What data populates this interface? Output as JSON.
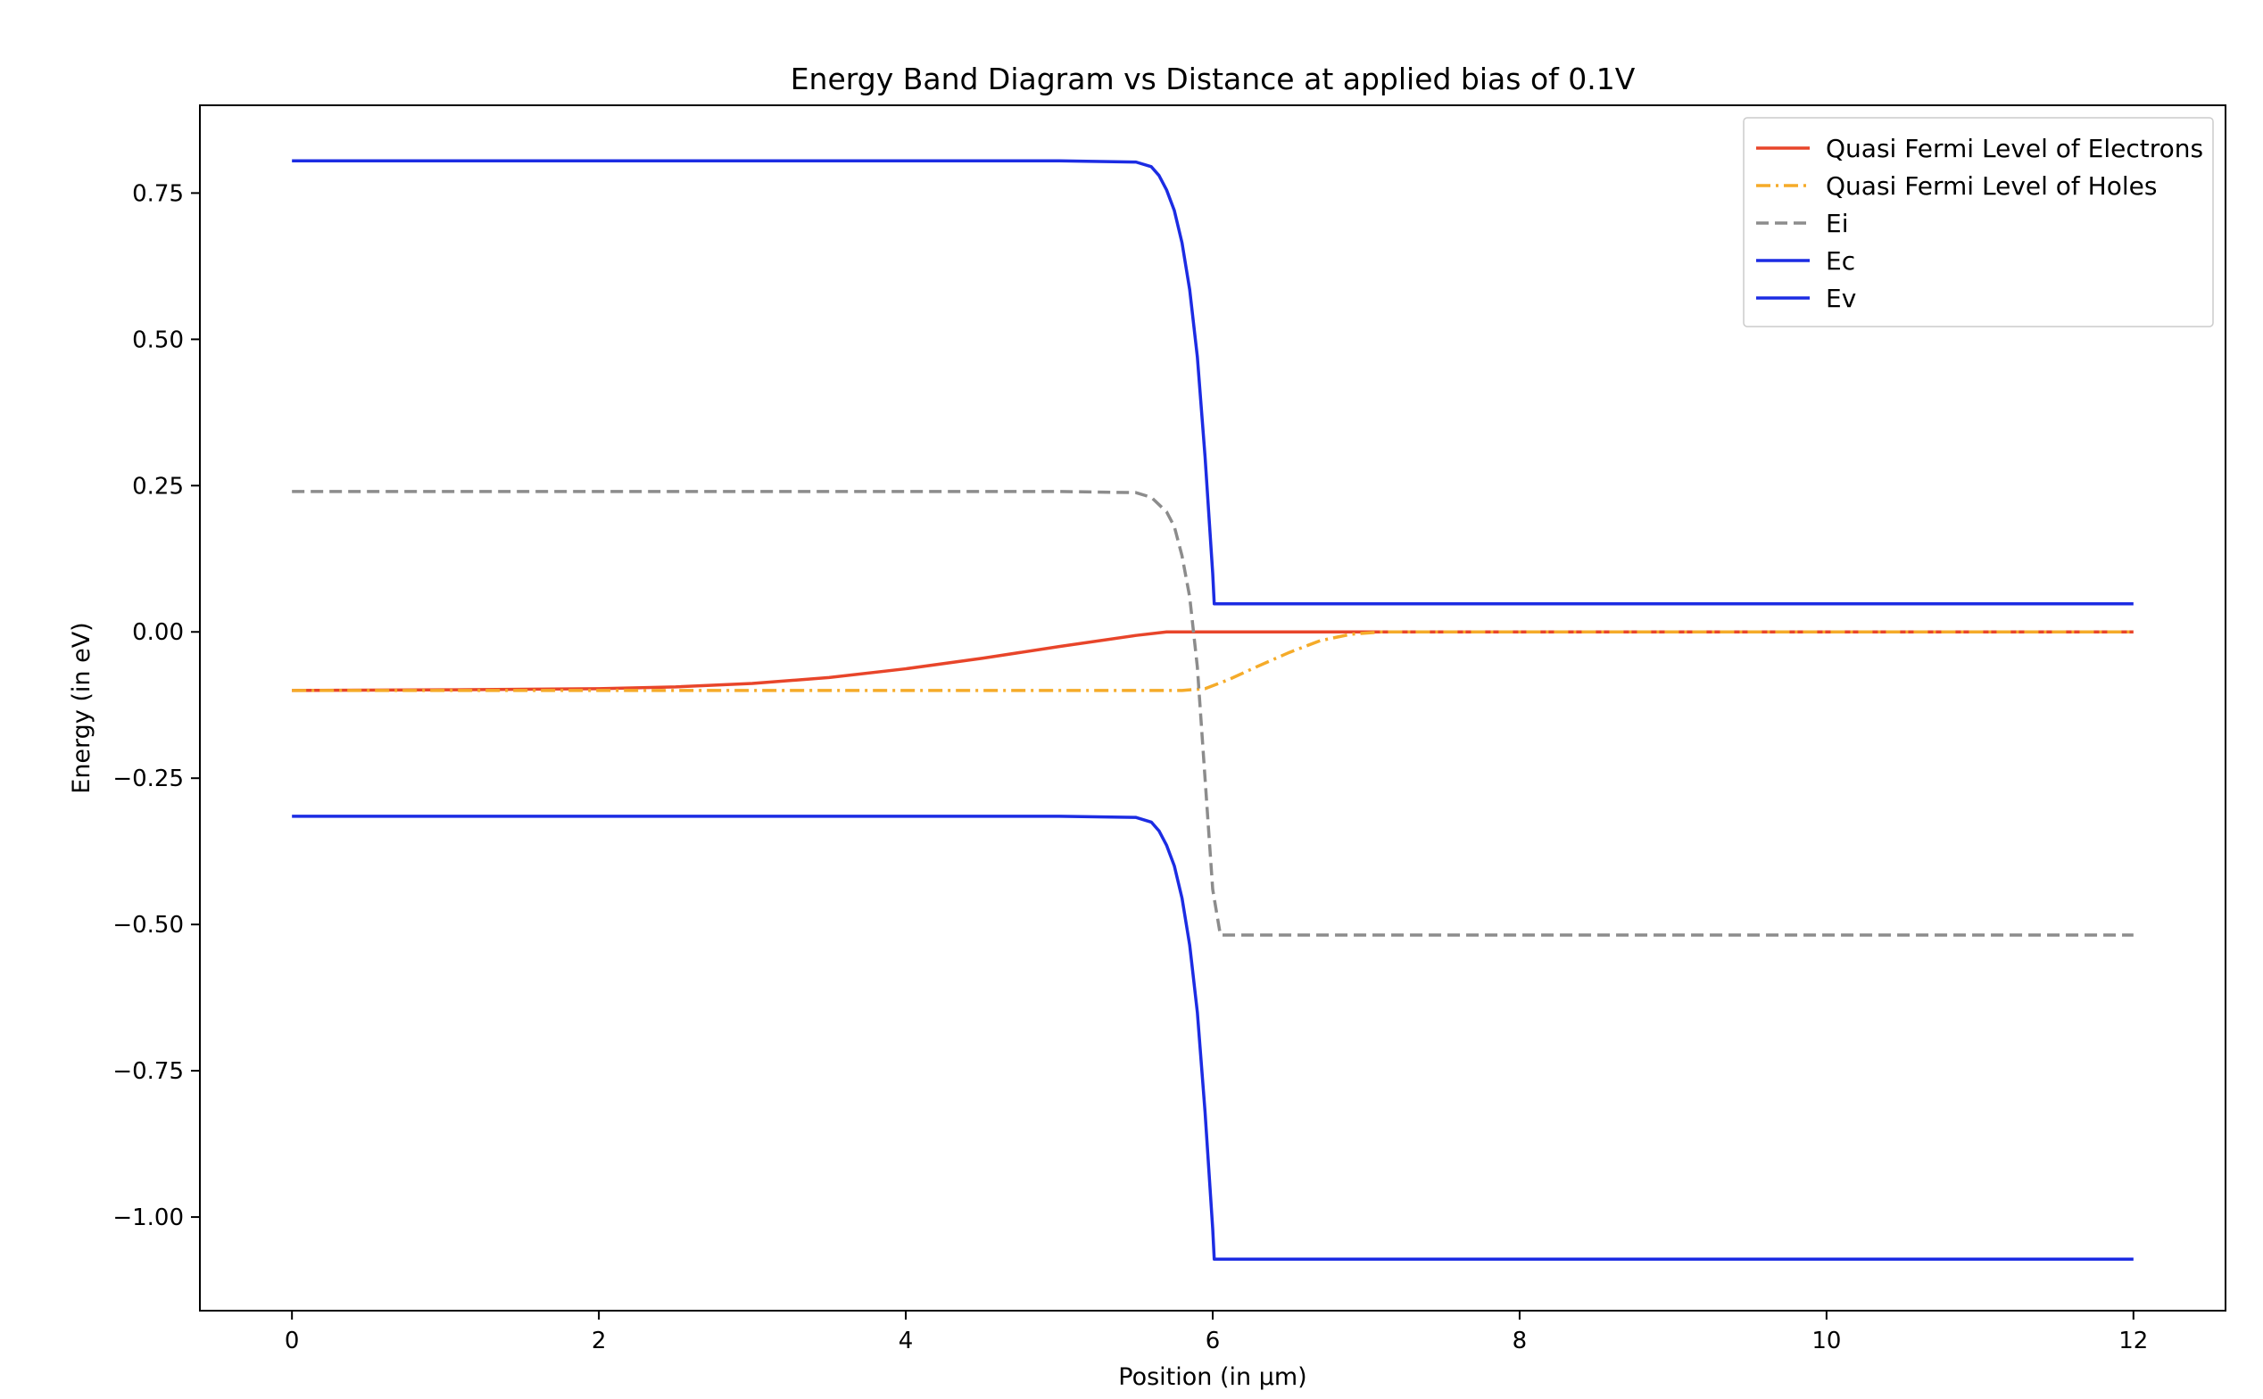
{
  "chart_data": {
    "type": "line",
    "title": "Energy Band Diagram vs Distance at applied bias of 0.1V",
    "xlabel": "Position (in μm)",
    "ylabel": "Energy (in eV)",
    "xlim": [
      -0.6,
      12.6
    ],
    "ylim": [
      -1.16,
      0.9
    ],
    "xticks": [
      0,
      2,
      4,
      6,
      8,
      10,
      12
    ],
    "xtick_labels": [
      "0",
      "2",
      "4",
      "6",
      "8",
      "10",
      "12"
    ],
    "yticks": [
      0.75,
      0.5,
      0.25,
      0.0,
      -0.25,
      -0.5,
      -0.75,
      -1.0
    ],
    "ytick_labels": [
      "0.75",
      "0.50",
      "0.25",
      "0.00",
      "−0.25",
      "−0.50",
      "−0.75",
      "−1.00"
    ],
    "grid": false,
    "legend_position": "top-right",
    "series": [
      {
        "name": "Quasi Fermi Level of Electrons",
        "color": "#e8452a",
        "dash": "solid",
        "x": [
          0,
          1,
          2,
          2.5,
          3,
          3.5,
          4,
          4.5,
          5,
          5.5,
          5.7,
          6,
          8,
          10,
          12
        ],
        "y": [
          -0.1,
          -0.099,
          -0.097,
          -0.094,
          -0.088,
          -0.078,
          -0.063,
          -0.045,
          -0.025,
          -0.006,
          0.0,
          0.0,
          0.0,
          0.0,
          0.0
        ]
      },
      {
        "name": "Quasi Fermi Level of Holes",
        "color": "#f5ab29",
        "dash": "dashdot",
        "x": [
          0,
          2,
          4,
          5,
          5.8,
          5.95,
          6.1,
          6.3,
          6.5,
          6.7,
          6.9,
          7.1,
          8,
          10,
          12
        ],
        "y": [
          -0.1,
          -0.1,
          -0.1,
          -0.1,
          -0.1,
          -0.097,
          -0.082,
          -0.058,
          -0.035,
          -0.015,
          -0.004,
          0.0,
          0.0,
          0.0,
          0.0
        ]
      },
      {
        "name": "Ei",
        "color": "#8c8c8c",
        "dash": "dashed",
        "x": [
          0,
          2,
          4,
          5,
          5.5,
          5.6,
          5.7,
          5.75,
          5.8,
          5.85,
          5.9,
          5.95,
          6.0,
          6.05,
          8,
          10,
          12
        ],
        "y": [
          0.24,
          0.24,
          0.24,
          0.24,
          0.238,
          0.23,
          0.205,
          0.18,
          0.13,
          0.06,
          -0.06,
          -0.25,
          -0.44,
          -0.518,
          -0.518,
          -0.518,
          -0.518
        ]
      },
      {
        "name": "Ec",
        "color": "#1c2ce3",
        "dash": "solid",
        "x": [
          0,
          2,
          4,
          5,
          5.5,
          5.6,
          5.65,
          5.7,
          5.75,
          5.8,
          5.85,
          5.9,
          5.95,
          6.0,
          6.01,
          8,
          10,
          12
        ],
        "y": [
          0.805,
          0.805,
          0.805,
          0.805,
          0.803,
          0.795,
          0.78,
          0.755,
          0.72,
          0.665,
          0.585,
          0.47,
          0.3,
          0.1,
          0.048,
          0.048,
          0.048,
          0.048
        ]
      },
      {
        "name": "Ev",
        "color": "#1c2ce3",
        "dash": "solid",
        "x": [
          0,
          2,
          4,
          5,
          5.5,
          5.6,
          5.65,
          5.7,
          5.75,
          5.8,
          5.85,
          5.9,
          5.95,
          6.0,
          6.01,
          8,
          10,
          12
        ],
        "y": [
          -0.315,
          -0.315,
          -0.315,
          -0.315,
          -0.317,
          -0.325,
          -0.34,
          -0.365,
          -0.4,
          -0.455,
          -0.535,
          -0.65,
          -0.82,
          -1.02,
          -1.072,
          -1.072,
          -1.072,
          -1.072
        ]
      }
    ]
  }
}
